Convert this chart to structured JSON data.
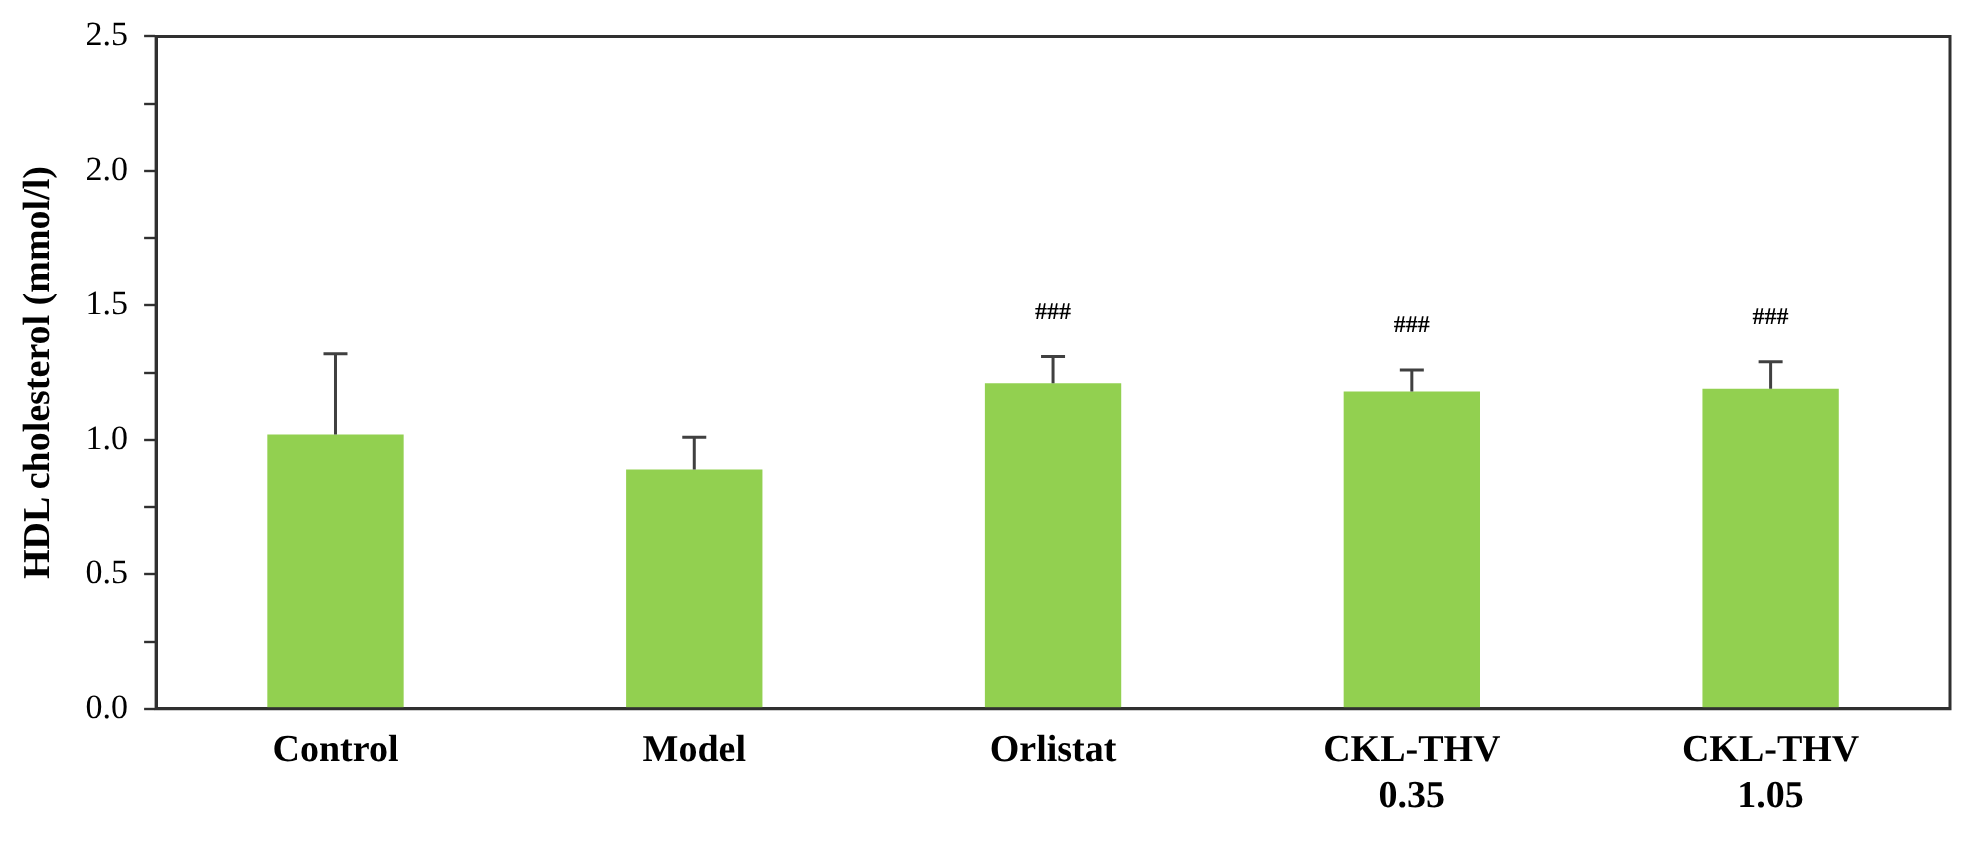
{
  "chart_data": {
    "type": "bar",
    "ylabel": "HDL cholesterol (mmol/l)",
    "categories": [
      "Control",
      "Model",
      "Orlistat",
      "CKL-THV\n0.35",
      "CKL-THV\n1.05"
    ],
    "values": [
      1.02,
      0.89,
      1.21,
      1.18,
      1.19
    ],
    "errors": [
      [
        1.02,
        1.32
      ],
      [
        0.89,
        1.01
      ],
      [
        1.21,
        1.31
      ],
      [
        1.18,
        1.26
      ],
      [
        1.19,
        1.29
      ]
    ],
    "color": "#92d050",
    "ylim": [
      0,
      2.5
    ],
    "yticks": [
      {
        "value": 0,
        "label": "0.0"
      },
      {
        "value": 0.25,
        "label": null
      },
      {
        "value": 0.5,
        "label": "0.5"
      },
      {
        "value": 0.75,
        "label": null
      },
      {
        "value": 1,
        "label": "1.0"
      },
      {
        "value": 1.25,
        "label": null
      },
      {
        "value": 1.5,
        "label": "1.5"
      },
      {
        "value": 1.75,
        "label": null
      },
      {
        "value": 2,
        "label": "2.0"
      },
      {
        "value": 2.25,
        "label": null
      },
      {
        "value": 2.5,
        "label": "2.5"
      }
    ],
    "annotations": [
      "###",
      "###",
      "###"
    ],
    "grid": false,
    "legend": false
  }
}
